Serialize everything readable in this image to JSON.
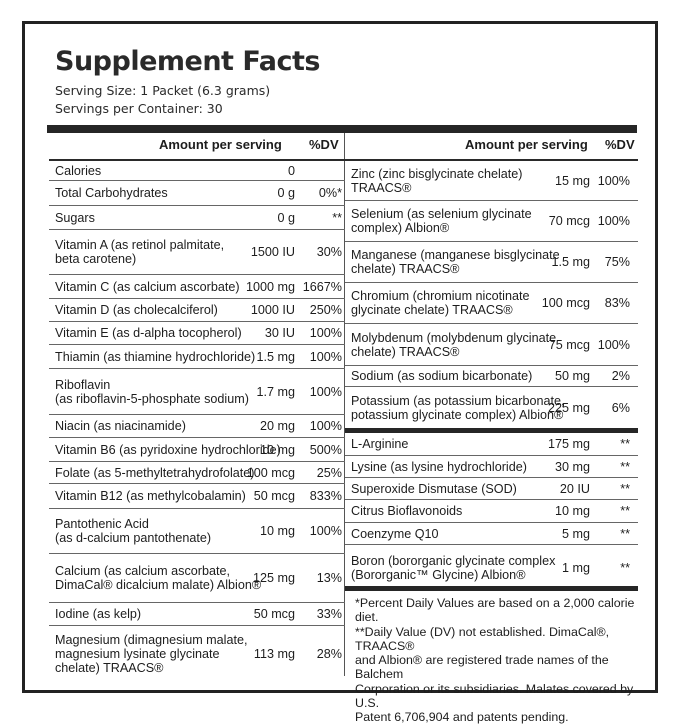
{
  "label": {
    "title": "Supplement Facts",
    "serving_size": "Serving Size: 1 Packet (6.3 grams)",
    "servings_per_container": "Servings per Container: 30"
  },
  "header": {
    "amount": "Amount per serving",
    "dv": "%DV"
  },
  "left_rows": [
    {
      "name": "Calories",
      "amount": "0",
      "dv": ""
    },
    {
      "name": "Total Carbohydrates",
      "amount": "0 g",
      "dv": "0%*"
    },
    {
      "name": "   Sugars",
      "amount": "0 g",
      "dv": "**"
    },
    {
      "name": "Vitamin A (as retinol palmitate,\nbeta carotene)",
      "amount": "1500 IU",
      "dv": "30%"
    },
    {
      "name": "Vitamin C (as calcium ascorbate)",
      "amount": "1000 mg",
      "dv": "1667%"
    },
    {
      "name": "Vitamin D (as cholecalciferol)",
      "amount": "1000 IU",
      "dv": "250%"
    },
    {
      "name": "Vitamin E (as d-alpha tocopherol)",
      "amount": "30 IU",
      "dv": "100%"
    },
    {
      "name": "Thiamin (as thiamine hydrochloride)",
      "amount": "1.5 mg",
      "dv": "100%"
    },
    {
      "name": "Riboflavin\n(as riboflavin-5-phosphate sodium)",
      "amount": "1.7 mg",
      "dv": "100%"
    },
    {
      "name": "Niacin (as niacinamide)",
      "amount": "20 mg",
      "dv": "100%"
    },
    {
      "name": "Vitamin B6 (as pyridoxine hydrochloride)",
      "amount": "10 mg",
      "dv": "500%"
    },
    {
      "name": "Folate (as 5-methyltetrahydrofolate)",
      "amount": "100 mcg",
      "dv": "25%"
    },
    {
      "name": "Vitamin B12 (as methylcobalamin)",
      "amount": "50 mcg",
      "dv": "833%"
    },
    {
      "name": "Pantothenic Acid\n(as d-calcium pantothenate)",
      "amount": "10 mg",
      "dv": "100%"
    },
    {
      "name": "Calcium (as calcium ascorbate,\nDimaCal® dicalcium malate) Albion®",
      "amount": "125 mg",
      "dv": "13%"
    },
    {
      "name": "Iodine (as kelp)",
      "amount": "50 mcg",
      "dv": "33%"
    },
    {
      "name": "Magnesium (dimagnesium malate,\nmagnesium lysinate glycinate\nchelate) TRAACS®",
      "amount": "113 mg",
      "dv": "28%"
    }
  ],
  "right_rows": [
    {
      "name": "Zinc (zinc bisglycinate chelate)\nTRAACS®",
      "amount": "15 mg",
      "dv": "100%"
    },
    {
      "name": "Selenium (as selenium glycinate\ncomplex) Albion®",
      "amount": "70 mcg",
      "dv": "100%"
    },
    {
      "name": "Manganese (manganese bisglycinate\nchelate) TRAACS®",
      "amount": "1.5 mg",
      "dv": "75%"
    },
    {
      "name": "Chromium (chromium nicotinate\nglycinate chelate) TRAACS®",
      "amount": "100 mcg",
      "dv": "83%"
    },
    {
      "name": "Molybdenum (molybdenum glycinate\nchelate) TRAACS®",
      "amount": "75 mcg",
      "dv": "100%"
    },
    {
      "name": "Sodium (as sodium bicarbonate)",
      "amount": "50 mg",
      "dv": "2%"
    },
    {
      "name": "Potassium (as potassium bicarbonate,\npotassium glycinate complex) Albion®",
      "amount": "225 mg",
      "dv": "6%"
    },
    {
      "name": "L-Arginine",
      "amount": "175 mg",
      "dv": "**"
    },
    {
      "name": "Lysine (as lysine hydrochloride)",
      "amount": "30 mg",
      "dv": "**"
    },
    {
      "name": "Superoxide Dismutase (SOD)",
      "amount": "20 IU",
      "dv": "**"
    },
    {
      "name": "Citrus Bioflavonoids",
      "amount": "10 mg",
      "dv": "**"
    },
    {
      "name": "Coenzyme Q10",
      "amount": "5 mg",
      "dv": "**"
    },
    {
      "name": "Boron (bororganic glycinate complex\n(Bororganic™ Glycine) Albion®",
      "amount": "1 mg",
      "dv": "**"
    }
  ],
  "footnote": "*Percent Daily Values are based on a 2,000 calorie diet.\n**Daily Value (DV) not established. DimaCal®, TRAACS®\nand Albion® are registered trade names of the Balchem\nCorporation or its subsidiaries. Malates covered by U.S.\nPatent 6,706,904 and patents pending."
}
